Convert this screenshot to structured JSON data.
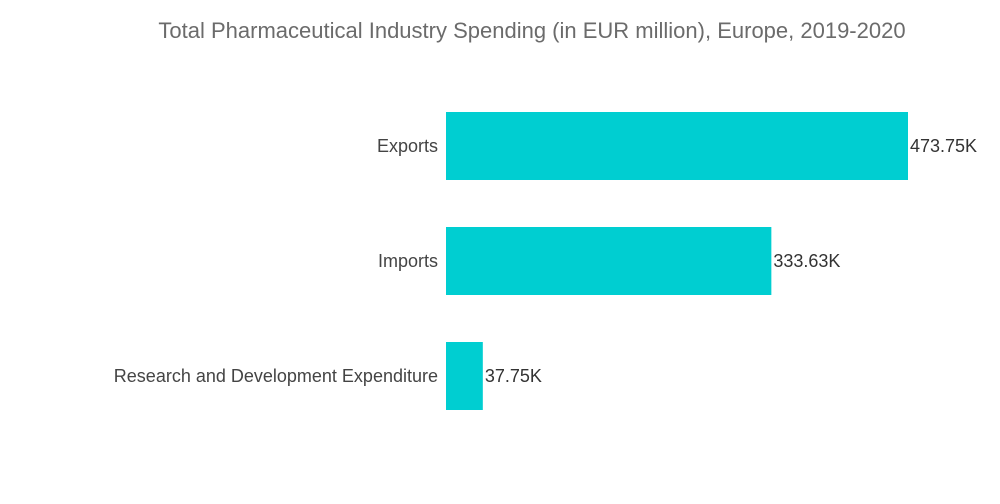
{
  "chart_data": {
    "type": "bar",
    "orientation": "horizontal",
    "title": "Total Pharmaceutical Industry Spending (in EUR million), Europe, 2019-2020",
    "categories": [
      "Exports",
      "Imports",
      "Research and Development Expenditure"
    ],
    "values": [
      473750,
      333630,
      37750
    ],
    "value_labels": [
      "473.75K",
      "333.63K",
      "37.75K"
    ],
    "xlabel": "",
    "ylabel": "",
    "xlim": [
      0,
      473750
    ],
    "grid": false,
    "legend": "none",
    "bar_color": "#00CED1"
  }
}
